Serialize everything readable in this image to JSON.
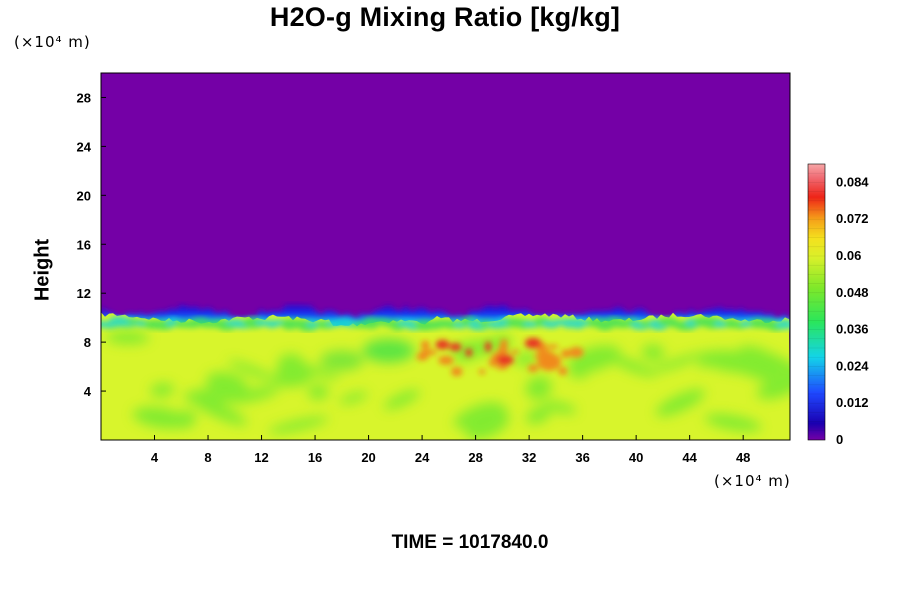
{
  "chart_data": {
    "type": "heatmap",
    "title": "H2O-g Mixing Ratio [kg/kg]",
    "xlabel": "",
    "ylabel": "Height",
    "x_unit": "(×10⁴ m)",
    "y_unit": "(×10⁴ m)",
    "xlim": [
      0,
      51.5
    ],
    "ylim": [
      0,
      30
    ],
    "x_ticks": [
      "4",
      "8",
      "12",
      "16",
      "20",
      "24",
      "28",
      "32",
      "36",
      "40",
      "44",
      "48"
    ],
    "y_ticks": [
      "4",
      "8",
      "12",
      "16",
      "20",
      "24",
      "28"
    ],
    "colorbar": {
      "range": [
        0,
        0.09
      ],
      "ticks": [
        "0",
        "0.012",
        "0.024",
        "0.036",
        "0.048",
        "0.06",
        "0.072",
        "0.084"
      ],
      "levels": 30,
      "colormap": "rainbow (purple → blue → cyan → green → yellow → orange → red → pink)"
    },
    "field_summary": {
      "upper_region_value": 0,
      "upper_region_extent_height": [
        10.5,
        30
      ],
      "moist_layer_top_height": 10,
      "lower_region_dominant_value": 0.058,
      "lower_region_green_patches_value": 0.045,
      "orange_red_maxima_value": 0.072,
      "orange_red_maxima_x": [
        24,
        36
      ],
      "orange_red_maxima_height": [
        5.5,
        8
      ]
    },
    "colors": {
      "dry_region": "#7400a6",
      "moist_region": "#d8f52c",
      "green": "#66e830",
      "max_region": "#f08a1a"
    }
  },
  "footer": {
    "time_label": "TIME = 1017840.0"
  }
}
